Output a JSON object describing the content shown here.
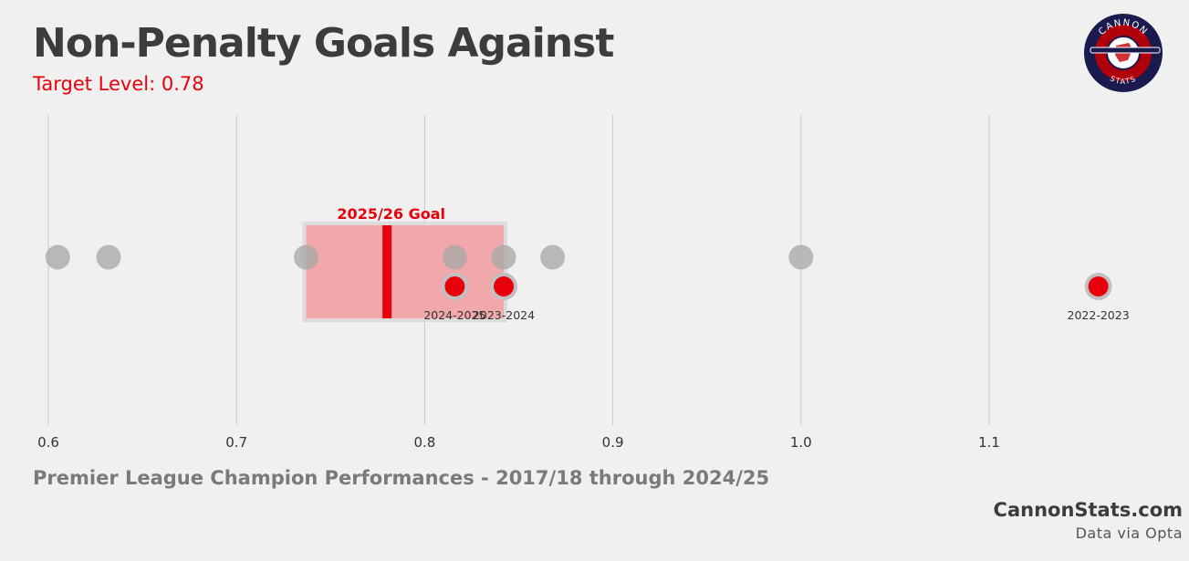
{
  "header": {
    "title": "Non-Penalty Goals Against",
    "subtitle": "Target Level: 0.78"
  },
  "logo": {
    "icon": "cannon-stats-logo",
    "text_top": "CANNON",
    "text_bottom": "STATS"
  },
  "footer": {
    "caption": "Premier League Champion Performances - 2017/18 through 2024/25",
    "site": "CannonStats.com",
    "source": "Data via Opta"
  },
  "colors": {
    "accent": "#e8000b",
    "background": "#f0f0f0",
    "grey_point": "#a8a8a8",
    "goal_band": "#f0a8aa"
  },
  "chart_data": {
    "type": "scatter",
    "xlim": [
      0.6,
      1.165
    ],
    "ticks": [
      0.6,
      0.7,
      0.8,
      0.9,
      1.0,
      1.1
    ],
    "tick_labels": [
      "0.6",
      "0.7",
      "0.8",
      "0.9",
      "1.0",
      "1.1"
    ],
    "grid": true,
    "target": 0.78,
    "goal_band": {
      "label": "2025/26 Goal",
      "from": 0.737,
      "to": 0.842
    },
    "champion_values": [
      0.605,
      0.632,
      0.737,
      0.816,
      0.842,
      0.868,
      1.0
    ],
    "highlighted": [
      {
        "season": "2024-2025",
        "value": 0.816
      },
      {
        "season": "2023-2024",
        "value": 0.842
      },
      {
        "season": "2022-2023",
        "value": 1.158
      }
    ]
  }
}
